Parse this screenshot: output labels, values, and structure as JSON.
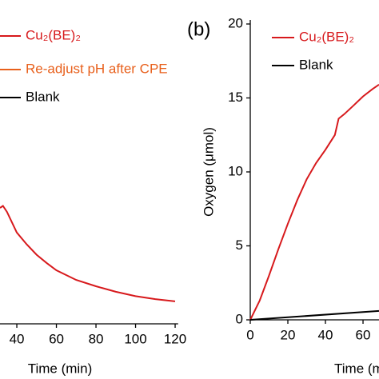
{
  "chart_data": [
    {
      "type": "line",
      "x_label": "Time (min)",
      "xlim": [
        31.5,
        121.5
      ],
      "xticks": [
        40,
        60,
        80,
        100,
        120
      ],
      "ylim": [
        0,
        20
      ],
      "series": [
        {
          "name": "Cu₂(BE)₂",
          "color": "#d7191c",
          "x": [
            31.5,
            33,
            35,
            40,
            45,
            50,
            55,
            60,
            70,
            80,
            90,
            100,
            110,
            120
          ],
          "values": [
            7.57,
            7.7,
            7.3,
            5.9,
            5.1,
            4.4,
            3.85,
            3.35,
            2.7,
            2.27,
            1.9,
            1.6,
            1.4,
            1.25
          ]
        },
        {
          "name": "Re-adjust pH after CPE",
          "color": "#e8601c",
          "x": [],
          "values": []
        },
        {
          "name": "Blank",
          "color": "#000000",
          "x": [],
          "values": []
        }
      ]
    },
    {
      "type": "line",
      "panel_label": "(b)",
      "x_label": "Time (min)",
      "y_label": "Oxygen (μmol)",
      "xlim": [
        0,
        68.5
      ],
      "xticks": [
        0,
        20,
        40,
        60
      ],
      "ylim": [
        0,
        20
      ],
      "yticks": [
        0,
        5,
        10,
        15,
        20
      ],
      "series": [
        {
          "name": "Cu₂(BE)₂",
          "color": "#d7191c",
          "x": [
            0,
            5,
            10,
            15,
            20,
            25,
            30,
            35,
            40,
            45,
            47,
            50,
            55,
            60,
            65,
            68.5
          ],
          "values": [
            0,
            1.3,
            3,
            4.8,
            6.5,
            8.1,
            9.5,
            10.6,
            11.5,
            12.5,
            13.6,
            13.9,
            14.5,
            15.1,
            15.6,
            15.9
          ]
        },
        {
          "name": "Blank",
          "color": "#000000",
          "x": [
            0,
            68.5
          ],
          "values": [
            0,
            0.6
          ]
        }
      ]
    }
  ]
}
